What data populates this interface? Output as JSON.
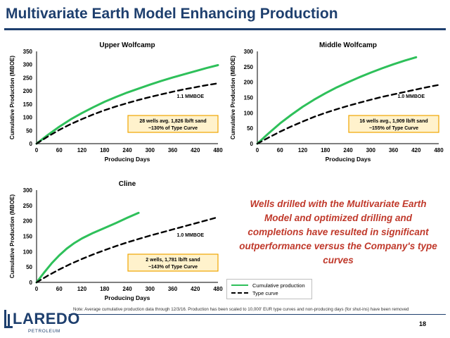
{
  "slide": {
    "title": "Multivariate Earth Model Enhancing Production",
    "callout": "Wells drilled with the Multivariate Earth Model and optimized drilling and completions have resulted in significant outperformance versus the Company's type curves",
    "legend": {
      "cumulative": "Cumulative production",
      "type_curve": "Type curve"
    },
    "footnote": "Note: Average cumulative production data through 12/3/16. Production has been scaled to 10,000' EUR type curves and non-producing days (for shut-ins) have been removed",
    "page_number": "18",
    "logo": {
      "name": "LAREDO",
      "sub": "PETROLEUM"
    },
    "colors": {
      "title": "#1e3f6e",
      "cumulative": "#2ec05a",
      "type_curve": "#000000",
      "callout_text": "#c0392b",
      "callout_box_fill": "#fff2cc",
      "callout_box_border": "#f0a500"
    }
  },
  "chart_data": [
    {
      "type": "line",
      "title": "Upper Wolfcamp",
      "xlabel": "Producing Days",
      "ylabel": "Cumulative Production (MBOE)",
      "xlim": [
        0,
        480
      ],
      "ylim": [
        0,
        350
      ],
      "xticks": [
        0,
        60,
        120,
        180,
        240,
        300,
        360,
        420,
        480
      ],
      "yticks": [
        0,
        50,
        100,
        150,
        200,
        250,
        300,
        350
      ],
      "series": [
        {
          "name": "Cumulative production",
          "style": "solid",
          "x": [
            0,
            30,
            60,
            90,
            120,
            150,
            180,
            210,
            240,
            270,
            300,
            330,
            360,
            390,
            420,
            450,
            480
          ],
          "y": [
            0,
            33,
            64,
            92,
            116,
            138,
            159,
            177,
            194,
            209,
            224,
            238,
            251,
            263,
            275,
            287,
            298
          ]
        },
        {
          "name": "Type curve",
          "style": "dashed",
          "x": [
            0,
            30,
            60,
            90,
            120,
            150,
            180,
            210,
            240,
            270,
            300,
            330,
            360,
            390,
            420,
            450,
            480
          ],
          "y": [
            0,
            27,
            52,
            74,
            93,
            111,
            127,
            141,
            154,
            166,
            177,
            187,
            197,
            206,
            214,
            222,
            229
          ]
        }
      ],
      "annotations": {
        "eur_label": "1.1 MMBOE",
        "box_line1": "28 wells avg. 1,826 lb/ft sand",
        "box_line2": "~130% of Type Curve"
      }
    },
    {
      "type": "line",
      "title": "Middle Wolfcamp",
      "xlabel": "Producing Days",
      "ylabel": "Cumulative Production (MBOE)",
      "xlim": [
        0,
        480
      ],
      "ylim": [
        0,
        300
      ],
      "xticks": [
        0,
        60,
        120,
        180,
        240,
        300,
        360,
        420,
        480
      ],
      "yticks": [
        0,
        50,
        100,
        150,
        200,
        250,
        300
      ],
      "series": [
        {
          "name": "Cumulative production",
          "style": "solid",
          "x": [
            0,
            30,
            60,
            90,
            120,
            150,
            180,
            210,
            240,
            270,
            300,
            330,
            360,
            390,
            420
          ],
          "y": [
            0,
            34,
            66,
            94,
            120,
            143,
            164,
            183,
            200,
            216,
            231,
            245,
            258,
            270,
            281
          ]
        },
        {
          "name": "Type curve",
          "style": "dashed",
          "x": [
            0,
            30,
            60,
            90,
            120,
            150,
            180,
            210,
            240,
            270,
            300,
            330,
            360,
            390,
            420,
            450,
            480
          ],
          "y": [
            0,
            20,
            39,
            56,
            72,
            87,
            100,
            112,
            123,
            133,
            143,
            152,
            160,
            168,
            176,
            184,
            191
          ]
        }
      ],
      "annotations": {
        "eur_label": "1.0 MMBOE",
        "box_line1": "16 wells avg., 1,909 lb/ft sand",
        "box_line2": "~155% of Type Curve"
      }
    },
    {
      "type": "line",
      "title": "Cline",
      "xlabel": "Producing Days",
      "ylabel": "Cumulative Production (MBOE)",
      "xlim": [
        0,
        480
      ],
      "ylim": [
        0,
        300
      ],
      "xticks": [
        0,
        60,
        120,
        180,
        240,
        300,
        360,
        420,
        480
      ],
      "yticks": [
        0,
        50,
        100,
        150,
        200,
        250,
        300
      ],
      "series": [
        {
          "name": "Cumulative production",
          "style": "solid",
          "x": [
            0,
            20,
            40,
            60,
            80,
            100,
            120,
            150,
            180,
            210,
            240,
            270
          ],
          "y": [
            0,
            32,
            62,
            88,
            110,
            128,
            143,
            161,
            177,
            193,
            210,
            226
          ]
        },
        {
          "name": "Type curve",
          "style": "dashed",
          "x": [
            0,
            30,
            60,
            90,
            120,
            150,
            180,
            210,
            240,
            270,
            300,
            330,
            360,
            390,
            420,
            450,
            480
          ],
          "y": [
            0,
            22,
            42,
            60,
            76,
            91,
            105,
            118,
            130,
            141,
            152,
            162,
            172,
            182,
            192,
            202,
            212
          ]
        }
      ],
      "annotations": {
        "eur_label": "1.0 MMBOE",
        "box_line1": "2 wells, 1,781 lb/ft sand",
        "box_line2": "~143% of Type Curve"
      }
    }
  ]
}
